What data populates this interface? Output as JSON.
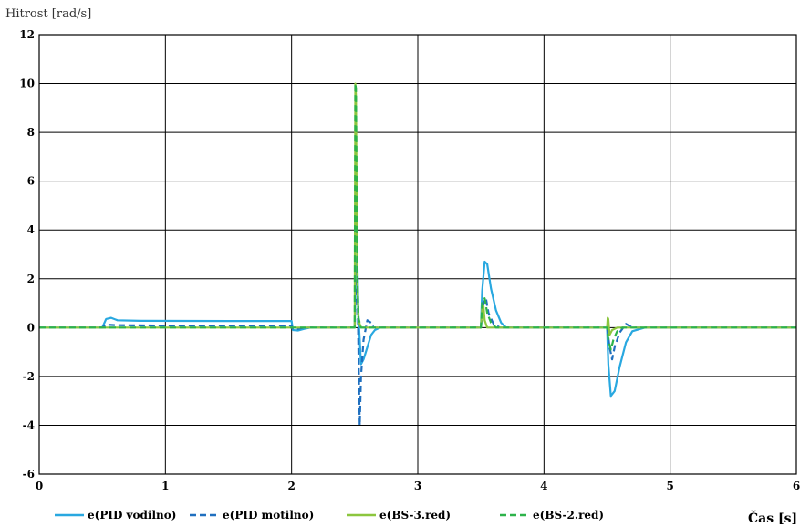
{
  "chart_data": {
    "type": "line",
    "ylabel": "Hitrost [rad/s]",
    "xlabel": "Čas [s]",
    "xlim": [
      0,
      6
    ],
    "ylim": [
      -6,
      12
    ],
    "xticks": [
      0,
      1,
      2,
      3,
      4,
      5,
      6
    ],
    "yticks": [
      -6,
      -4,
      -2,
      0,
      2,
      4,
      6,
      8,
      10,
      12
    ],
    "grid": true,
    "legend_position": "bottom",
    "series": [
      {
        "name": "e(PID vodilno)",
        "color": "#29a8e0",
        "dash": "solid",
        "x": [
          0,
          0.5,
          0.53,
          0.57,
          0.62,
          0.8,
          1.5,
          2.0,
          2.01,
          2.05,
          2.1,
          2.15,
          2.5,
          2.51,
          2.52,
          2.53,
          2.55,
          2.57,
          2.6,
          2.63,
          2.66,
          2.7,
          2.8,
          3.5,
          3.51,
          3.53,
          3.55,
          3.58,
          3.62,
          3.66,
          3.7,
          3.8,
          4.5,
          4.51,
          4.53,
          4.56,
          4.6,
          4.65,
          4.7,
          4.8,
          6
        ],
        "y": [
          0,
          0,
          0.35,
          0.4,
          0.3,
          0.28,
          0.27,
          0.27,
          -0.1,
          -0.12,
          -0.05,
          0,
          0,
          2.5,
          3.0,
          0.5,
          -1.5,
          -1.3,
          -0.8,
          -0.3,
          -0.1,
          0,
          0,
          0,
          1.5,
          2.7,
          2.6,
          1.6,
          0.7,
          0.2,
          0,
          0,
          0,
          -1.5,
          -2.8,
          -2.6,
          -1.6,
          -0.6,
          -0.15,
          0,
          0
        ]
      },
      {
        "name": "e(PID motilno)",
        "color": "#1f6fbf",
        "dash": "dashed",
        "x": [
          0,
          0.5,
          0.53,
          0.6,
          1.0,
          2.0,
          2.01,
          2.05,
          2.1,
          2.5,
          2.51,
          2.52,
          2.53,
          2.54,
          2.55,
          2.57,
          2.6,
          2.63,
          2.65,
          2.7,
          3.5,
          3.52,
          3.54,
          3.56,
          3.6,
          3.65,
          4.5,
          4.52,
          4.54,
          4.56,
          4.6,
          4.65,
          4.7,
          6
        ],
        "y": [
          0,
          0,
          0.12,
          0.1,
          0.08,
          0.08,
          -0.05,
          -0.05,
          0,
          0,
          1.5,
          2.5,
          -1.0,
          -4.0,
          -2.0,
          -0.5,
          0.3,
          0.2,
          0,
          0,
          0,
          1.0,
          1.2,
          0.6,
          0.15,
          0,
          0,
          -0.8,
          -1.3,
          -0.8,
          -0.2,
          0.15,
          0,
          0
        ]
      },
      {
        "name": "e(BS-3.red)",
        "color": "#8cc63e",
        "dash": "solid",
        "x": [
          0,
          2.5,
          2.505,
          2.51,
          2.52,
          2.53,
          2.55,
          2.6,
          3.5,
          3.51,
          3.52,
          3.53,
          3.55,
          3.6,
          4.5,
          4.505,
          4.51,
          4.52,
          4.54,
          4.58,
          6
        ],
        "y": [
          0,
          0,
          10.0,
          9.5,
          2.0,
          0.3,
          0,
          0,
          0,
          0.8,
          0.9,
          0.3,
          0,
          0,
          0,
          0.4,
          0.35,
          -0.3,
          -0.1,
          0,
          0
        ]
      },
      {
        "name": "e(BS-2.red)",
        "color": "#2db34a",
        "dash": "dashed",
        "x": [
          0,
          2.5,
          2.505,
          2.51,
          2.52,
          2.53,
          2.55,
          2.6,
          3.5,
          3.51,
          3.53,
          3.55,
          3.58,
          3.62,
          4.5,
          4.51,
          4.53,
          4.55,
          4.58,
          4.62,
          6
        ],
        "y": [
          0,
          0,
          10.0,
          9.8,
          2.5,
          0.4,
          0,
          0,
          0,
          1.0,
          1.2,
          0.6,
          0.2,
          0,
          0,
          -0.5,
          -0.9,
          -0.5,
          -0.15,
          0,
          0
        ]
      }
    ]
  }
}
